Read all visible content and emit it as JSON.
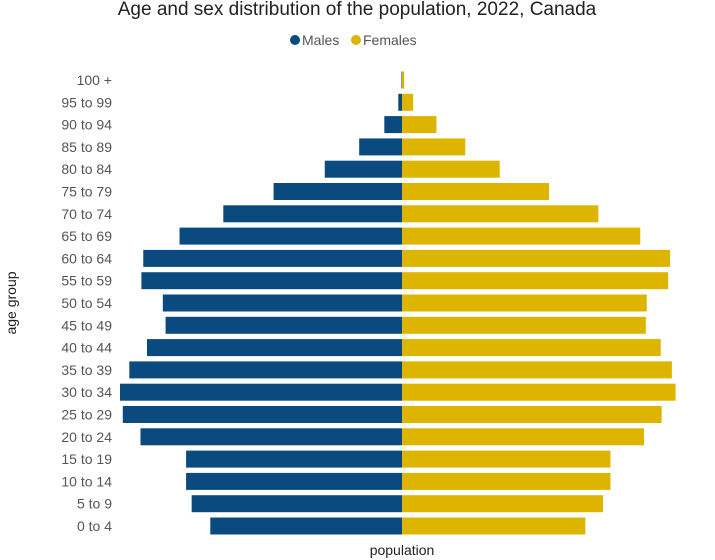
{
  "chart_data": {
    "type": "bar",
    "orientation": "horizontal",
    "layout": "population-pyramid",
    "title": "Age and sex distribution of the population, 2022, Canada",
    "xlabel": "population",
    "ylabel": "age group",
    "grid": false,
    "legend_position": "top-center",
    "categories": [
      "0 to 4",
      "5 to 9",
      "10 to 14",
      "15 to 19",
      "20 to 24",
      "25 to 29",
      "30 to 34",
      "35 to 39",
      "40 to 44",
      "45 to 49",
      "50 to 54",
      "55 to 59",
      "60 to 64",
      "65 to 69",
      "70 to 74",
      "75 to 79",
      "80 to 84",
      "85 to 89",
      "90 to 94",
      "95 to 99",
      "100 +"
    ],
    "series": [
      {
        "name": "Males",
        "color": "#0b4a7e",
        "values": [
          1030000,
          1130000,
          1160000,
          1160000,
          1405000,
          1500000,
          1515000,
          1465000,
          1370000,
          1270000,
          1285000,
          1400000,
          1390000,
          1195000,
          960000,
          690000,
          415000,
          230000,
          95000,
          20000,
          3000
        ]
      },
      {
        "name": "Females",
        "color": "#ddb500",
        "values": [
          985000,
          1080000,
          1120000,
          1120000,
          1300000,
          1395000,
          1470000,
          1450000,
          1390000,
          1310000,
          1315000,
          1430000,
          1440000,
          1280000,
          1055000,
          790000,
          525000,
          340000,
          185000,
          60000,
          12000
        ]
      }
    ]
  }
}
